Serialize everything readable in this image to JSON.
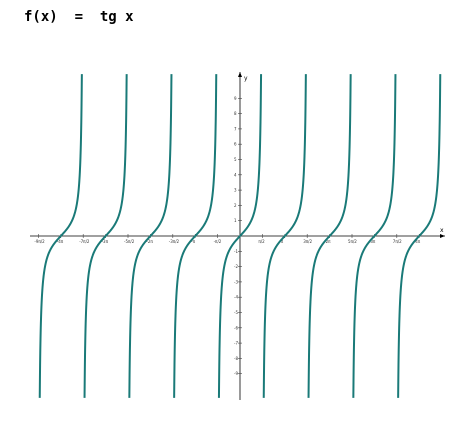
{
  "title": "f(x)  =  tg x",
  "chart_data": {
    "type": "line",
    "function": "tg x",
    "series": [
      {
        "name": "",
        "color": "#1a7a78",
        "expression": "tan(x)"
      }
    ],
    "xlabel": "x",
    "ylabel": "y",
    "xlim": [
      -4.5,
      4.5
    ],
    "x_unit": "π",
    "ylim": [
      -9.5,
      9.5
    ],
    "x_ticks": [
      {
        "label": "-9π/2",
        "value": -4.5
      },
      {
        "label": "-4π",
        "value": -4
      },
      {
        "label": "-7π/2",
        "value": -3.5
      },
      {
        "label": "-3π",
        "value": -3
      },
      {
        "label": "-5π/2",
        "value": -2.5
      },
      {
        "label": "-2π",
        "value": -2
      },
      {
        "label": "-3π/2",
        "value": -1.5
      },
      {
        "label": "-π",
        "value": -1
      },
      {
        "label": "-π/2",
        "value": -0.5
      },
      {
        "label": "π/2",
        "value": 0.5
      },
      {
        "label": "π",
        "value": 1
      },
      {
        "label": "3π/2",
        "value": 1.5
      },
      {
        "label": "2π",
        "value": 2
      },
      {
        "label": "5π/2",
        "value": 2.5
      },
      {
        "label": "3π",
        "value": 3
      },
      {
        "label": "7π/2",
        "value": 3.5
      },
      {
        "label": "4π",
        "value": 4
      }
    ],
    "y_ticks": [
      -9,
      -8,
      -7,
      -6,
      -5,
      -4,
      -3,
      -2,
      -1,
      1,
      2,
      3,
      4,
      5,
      6,
      7,
      8,
      9
    ],
    "grid": false,
    "colors": {
      "axis": "#000000",
      "curve": "#1a7a78",
      "ticks": "#444444"
    }
  }
}
